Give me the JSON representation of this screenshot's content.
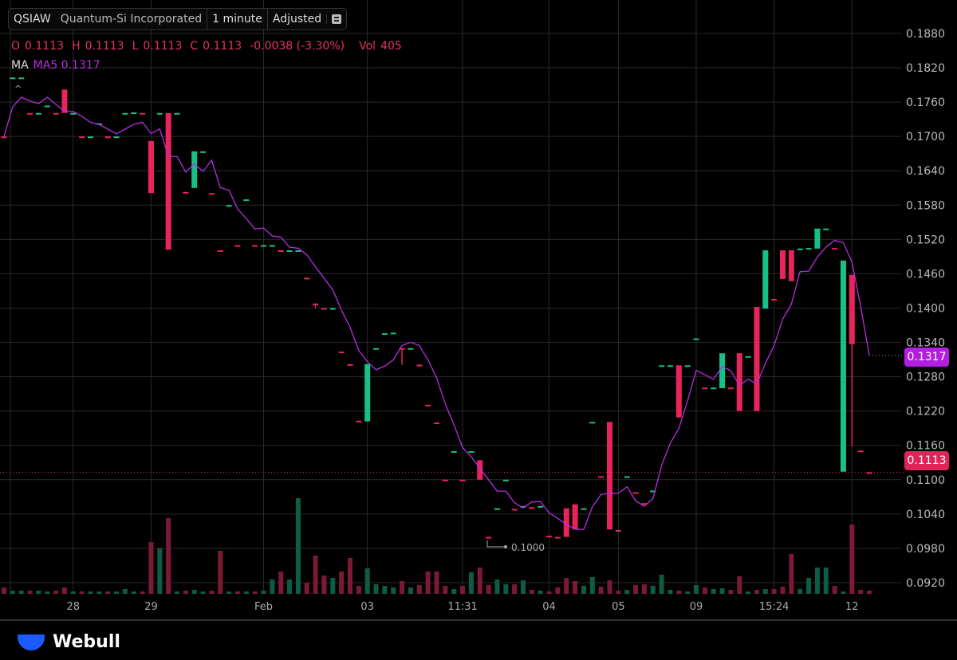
{
  "header": {
    "symbol": "QSIAW",
    "company": "Quantum-Si Incorporated",
    "interval": "1 minute",
    "adjust": "Adjusted",
    "menu_icon": "list-icon"
  },
  "ohlc": {
    "o_label": "O",
    "o": "0.1113",
    "h_label": "H",
    "h": "0.1113",
    "l_label": "L",
    "l": "0.1113",
    "c_label": "C",
    "c": "0.1113",
    "change": "-0.0038 (-3.30%)",
    "vol_label": "Vol",
    "vol": "405"
  },
  "ma": {
    "label": "MA",
    "value": "MA5 0.1317"
  },
  "tags": {
    "ma_price": "0.1317",
    "last_price": "0.1113"
  },
  "low_marker": "0.1000",
  "brand": "Webull",
  "colors": {
    "up": "#17c08b",
    "down": "#e8245a",
    "ma": "#b72ee0",
    "up_vol": "#0d5c45",
    "down_vol": "#7c1a35"
  },
  "chart_data": {
    "type": "candlestick",
    "title": "QSIAW 1 minute",
    "ylim": [
      0.0905,
      0.1895
    ],
    "y_ticks": [
      "0.1880",
      "0.1820",
      "0.1760",
      "0.1700",
      "0.1640",
      "0.1580",
      "0.1520",
      "0.1460",
      "0.1400",
      "0.1340",
      "0.1280",
      "0.1220",
      "0.1160",
      "0.1100",
      "0.1040",
      "0.0980",
      "0.0920"
    ],
    "x_ticks": [
      {
        "i": 8,
        "label": "28"
      },
      {
        "i": 17,
        "label": "29"
      },
      {
        "i": 30,
        "label": "Feb"
      },
      {
        "i": 42,
        "label": "03"
      },
      {
        "i": 53,
        "label": "11:31"
      },
      {
        "i": 63,
        "label": "04"
      },
      {
        "i": 71,
        "label": "05"
      },
      {
        "i": 80,
        "label": "09"
      },
      {
        "i": 89,
        "label": "15:24"
      },
      {
        "i": 98,
        "label": "12"
      }
    ],
    "ma_period": 5,
    "candles": [
      [
        0.17,
        0.17,
        0.17,
        0.17,
        800
      ],
      [
        0.1803,
        0.1803,
        0.1803,
        0.1803,
        400
      ],
      [
        0.1803,
        0.1803,
        0.1803,
        0.1803,
        400
      ],
      [
        0.1741,
        0.1741,
        0.1741,
        0.1741,
        400
      ],
      [
        0.1741,
        0.1741,
        0.1741,
        0.1741,
        400
      ],
      [
        0.1754,
        0.1754,
        0.1754,
        0.1754,
        300
      ],
      [
        0.1741,
        0.1741,
        0.1741,
        0.1741,
        400
      ],
      [
        0.1782,
        0.1782,
        0.1741,
        0.1741,
        800
      ],
      [
        0.1741,
        0.1741,
        0.1741,
        0.1741,
        300
      ],
      [
        0.17,
        0.17,
        0.17,
        0.17,
        300
      ],
      [
        0.17,
        0.17,
        0.17,
        0.17,
        300
      ],
      [
        0.1723,
        0.1723,
        0.1723,
        0.1723,
        300
      ],
      [
        0.17,
        0.17,
        0.17,
        0.17,
        300
      ],
      [
        0.17,
        0.17,
        0.17,
        0.17,
        300
      ],
      [
        0.1741,
        0.1741,
        0.1741,
        0.1741,
        600
      ],
      [
        0.1742,
        0.1742,
        0.1742,
        0.1742,
        300
      ],
      [
        0.1741,
        0.1741,
        0.1741,
        0.1741,
        300
      ],
      [
        0.1692,
        0.1692,
        0.1601,
        0.1601,
        6500
      ],
      [
        0.1741,
        0.1741,
        0.1741,
        0.1741,
        5700
      ],
      [
        0.1741,
        0.1741,
        0.1502,
        0.1502,
        9500
      ],
      [
        0.1741,
        0.1741,
        0.1741,
        0.1741,
        300
      ],
      [
        0.1603,
        0.1603,
        0.1603,
        0.1603,
        400
      ],
      [
        0.161,
        0.1674,
        0.161,
        0.1674,
        500
      ],
      [
        0.1674,
        0.1674,
        0.1674,
        0.1674,
        300
      ],
      [
        0.1601,
        0.1601,
        0.1601,
        0.1601,
        400
      ],
      [
        0.1501,
        0.1501,
        0.1501,
        0.1501,
        5400
      ],
      [
        0.158,
        0.158,
        0.158,
        0.158,
        300
      ],
      [
        0.151,
        0.151,
        0.151,
        0.151,
        300
      ],
      [
        0.159,
        0.159,
        0.159,
        0.159,
        300
      ],
      [
        0.151,
        0.151,
        0.151,
        0.151,
        300
      ],
      [
        0.151,
        0.151,
        0.151,
        0.151,
        400
      ],
      [
        0.151,
        0.151,
        0.151,
        0.151,
        1800
      ],
      [
        0.1501,
        0.1501,
        0.1501,
        0.1501,
        2800
      ],
      [
        0.1501,
        0.1501,
        0.1501,
        0.1501,
        1800
      ],
      [
        0.1501,
        0.1501,
        0.1501,
        0.1501,
        12000
      ],
      [
        0.1453,
        0.1453,
        0.1453,
        0.1453,
        1400
      ],
      [
        0.1408,
        0.1408,
        0.14,
        0.1405,
        4800
      ],
      [
        0.14,
        0.14,
        0.14,
        0.14,
        2300
      ],
      [
        0.14,
        0.14,
        0.14,
        0.14,
        2000
      ],
      [
        0.1324,
        0.1324,
        0.1324,
        0.1324,
        2800
      ],
      [
        0.1302,
        0.1302,
        0.1302,
        0.1302,
        4500
      ],
      [
        0.1203,
        0.1203,
        0.1203,
        0.1203,
        1000
      ],
      [
        0.1202,
        0.1302,
        0.1202,
        0.1302,
        3200
      ],
      [
        0.133,
        0.133,
        0.133,
        0.133,
        1200
      ],
      [
        0.1356,
        0.1356,
        0.1356,
        0.1356,
        1000
      ],
      [
        0.1357,
        0.1357,
        0.1357,
        0.1357,
        800
      ],
      [
        0.133,
        0.133,
        0.1301,
        0.1328,
        1600
      ],
      [
        0.133,
        0.133,
        0.133,
        0.133,
        800
      ],
      [
        0.1301,
        0.1301,
        0.1301,
        0.1301,
        1100
      ],
      [
        0.1231,
        0.1231,
        0.1231,
        0.1231,
        2800
      ],
      [
        0.12,
        0.12,
        0.12,
        0.12,
        2800
      ],
      [
        0.11,
        0.11,
        0.11,
        0.11,
        1000
      ],
      [
        0.115,
        0.115,
        0.115,
        0.115,
        600
      ],
      [
        0.11,
        0.11,
        0.11,
        0.11,
        1000
      ],
      [
        0.115,
        0.115,
        0.115,
        0.115,
        2700
      ],
      [
        0.1134,
        0.1134,
        0.11,
        0.11,
        3300
      ],
      [
        0.1,
        0.1,
        0.1,
        0.1,
        1100
      ],
      [
        0.105,
        0.105,
        0.105,
        0.105,
        1800
      ],
      [
        0.11,
        0.11,
        0.11,
        0.11,
        1200
      ],
      [
        0.1049,
        0.1049,
        0.1049,
        0.1049,
        1200
      ],
      [
        0.1054,
        0.1054,
        0.1054,
        0.1054,
        1700
      ],
      [
        0.1052,
        0.1052,
        0.1052,
        0.1052,
        500
      ],
      [
        0.1054,
        0.1054,
        0.1054,
        0.1054,
        400
      ],
      [
        0.1002,
        0.1002,
        0.1002,
        0.1002,
        300
      ],
      [
        0.1,
        0.1,
        0.1,
        0.1,
        800
      ],
      [
        0.105,
        0.105,
        0.1,
        0.1,
        2000
      ],
      [
        0.1057,
        0.1057,
        0.1013,
        0.1013,
        1600
      ],
      [
        0.105,
        0.105,
        0.105,
        0.105,
        1000
      ],
      [
        0.1201,
        0.1201,
        0.1201,
        0.1201,
        2100
      ],
      [
        0.1106,
        0.1106,
        0.1106,
        0.1106,
        900
      ],
      [
        0.1201,
        0.1201,
        0.1013,
        0.1013,
        1700
      ],
      [
        0.1012,
        0.1012,
        0.1012,
        0.1012,
        400
      ],
      [
        0.1106,
        0.1106,
        0.1106,
        0.1106,
        500
      ],
      [
        0.1078,
        0.1078,
        0.1078,
        0.1078,
        1100
      ],
      [
        0.1059,
        0.1059,
        0.1059,
        0.1059,
        1200
      ],
      [
        0.1081,
        0.1081,
        0.1081,
        0.1081,
        1000
      ],
      [
        0.13,
        0.13,
        0.13,
        0.13,
        2400
      ],
      [
        0.13,
        0.13,
        0.13,
        0.13,
        500
      ],
      [
        0.13,
        0.13,
        0.1209,
        0.1209,
        400
      ],
      [
        0.13,
        0.13,
        0.13,
        0.13,
        300
      ],
      [
        0.1347,
        0.1347,
        0.1347,
        0.1347,
        1100
      ],
      [
        0.1261,
        0.1261,
        0.1261,
        0.1261,
        800
      ],
      [
        0.1261,
        0.1261,
        0.1261,
        0.1261,
        600
      ],
      [
        0.126,
        0.1321,
        0.126,
        0.1321,
        700
      ],
      [
        0.1261,
        0.1261,
        0.1261,
        0.1261,
        500
      ],
      [
        0.1321,
        0.1321,
        0.122,
        0.122,
        2200
      ],
      [
        0.1316,
        0.1316,
        0.1316,
        0.1316,
        300
      ],
      [
        0.1402,
        0.1402,
        0.122,
        0.122,
        500
      ],
      [
        0.1399,
        0.1501,
        0.1399,
        0.1501,
        600
      ],
      [
        0.1416,
        0.1416,
        0.1416,
        0.1416,
        600
      ],
      [
        0.1501,
        0.1501,
        0.1451,
        0.1451,
        900
      ],
      [
        0.1501,
        0.1501,
        0.1447,
        0.1447,
        5000
      ],
      [
        0.1504,
        0.1504,
        0.1504,
        0.1504,
        600
      ],
      [
        0.1505,
        0.1505,
        0.1505,
        0.1505,
        2000
      ],
      [
        0.1504,
        0.1539,
        0.1504,
        0.1539,
        3300
      ],
      [
        0.1539,
        0.1539,
        0.1539,
        0.1539,
        3300
      ],
      [
        0.1505,
        0.1505,
        0.1505,
        0.1505,
        1000
      ],
      [
        0.1114,
        0.1483,
        0.1114,
        0.1483,
        300
      ],
      [
        0.1458,
        0.1458,
        0.1159,
        0.1337,
        8700
      ],
      [
        0.1151,
        0.1151,
        0.1151,
        0.1151,
        500
      ],
      [
        0.1113,
        0.1113,
        0.1113,
        0.1113,
        405
      ]
    ]
  }
}
